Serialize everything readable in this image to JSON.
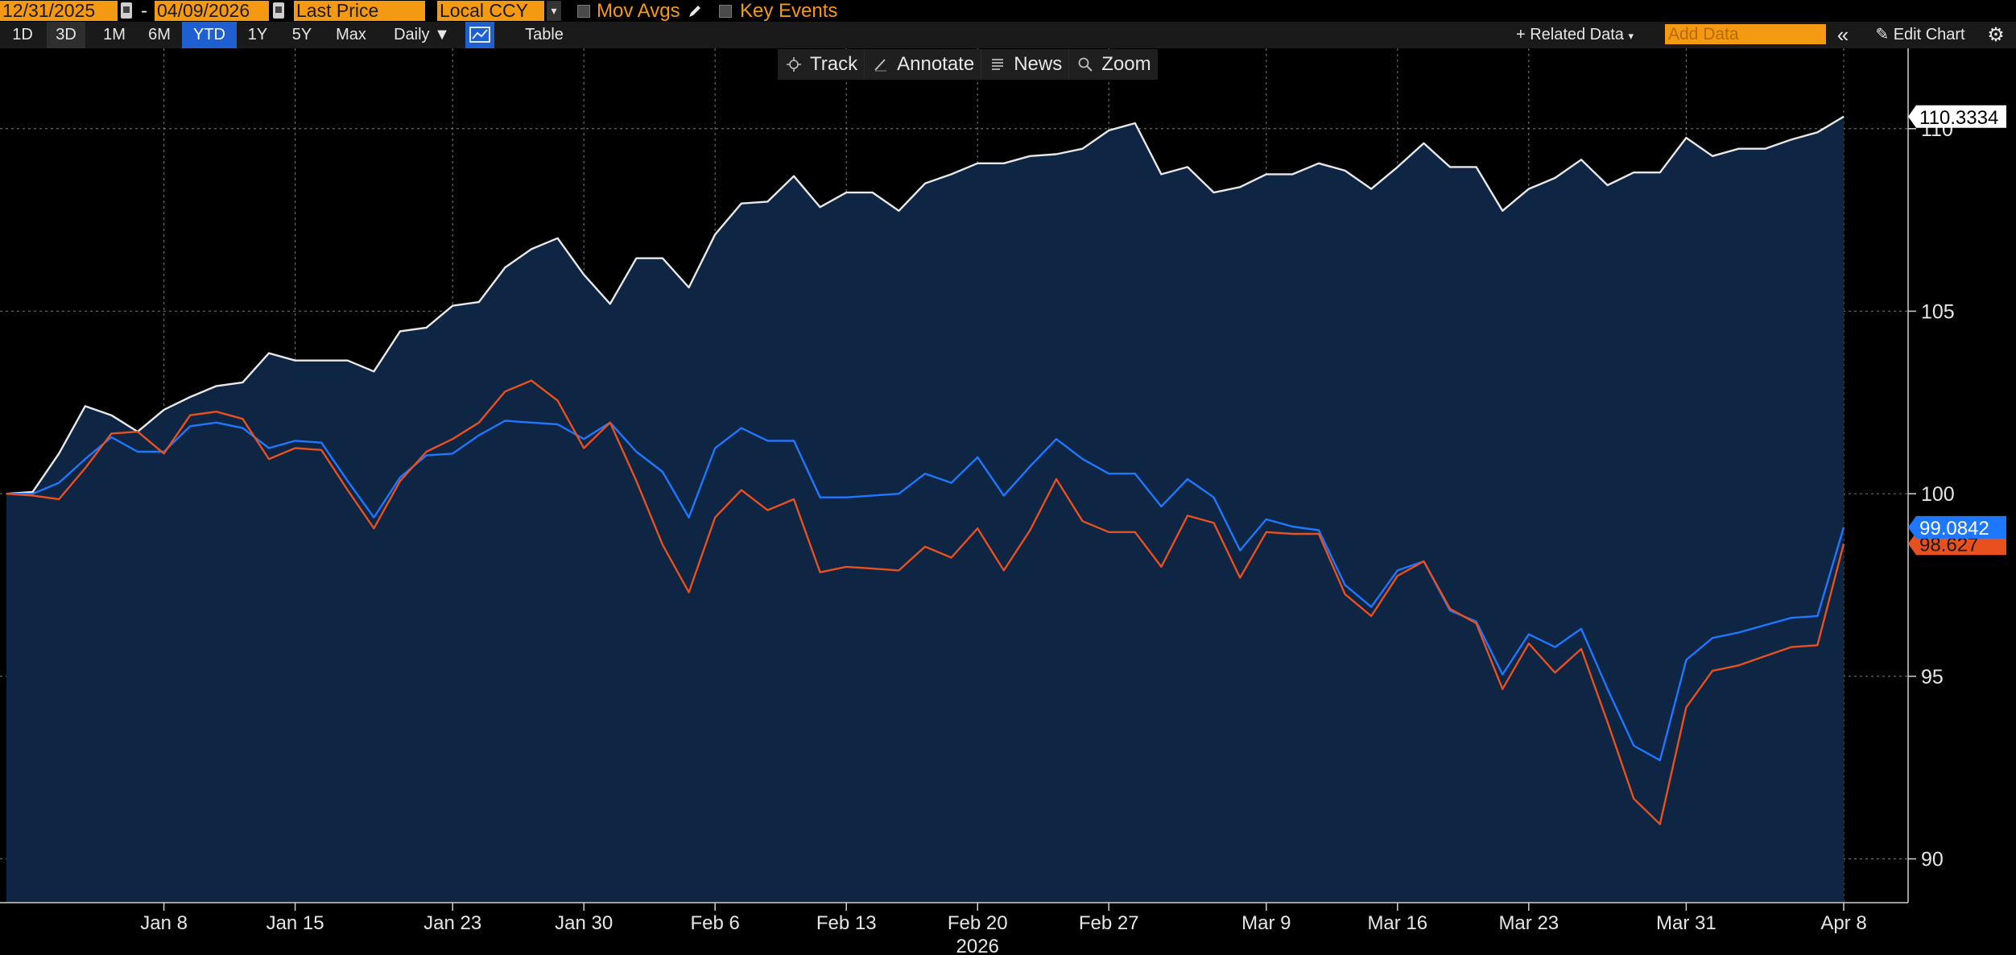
{
  "toolbar": {
    "start_date": "12/31/2025",
    "date_separator": "-",
    "end_date": "04/09/2026",
    "field": "Last Price",
    "currency": "Local CCY",
    "mov_avgs_label": "Mov Avgs",
    "key_events_label": "Key Events",
    "periods": [
      "1D",
      "3D",
      "1M",
      "6M",
      "YTD",
      "1Y",
      "5Y",
      "Max"
    ],
    "active_period": "YTD",
    "frequency": "Daily",
    "table_label": "Table",
    "related_data_label": "+ Related Data",
    "add_data_placeholder": "Add Data",
    "edit_chart_label": "Edit Chart"
  },
  "overlay": {
    "track_label": "Track",
    "annotate_label": "Annotate",
    "news_label": "News",
    "zoom_label": "Zoom"
  },
  "colors": {
    "background": "#000000",
    "area_fill": "#0f2544",
    "white_series": "#e8e8e8",
    "blue_series": "#1e78ff",
    "orange_series": "#e8501e",
    "accent_orange": "#f39a12",
    "active_blue": "#1f5fcf"
  },
  "chart_data": {
    "type": "line",
    "title": "",
    "xlabel": "2026",
    "ylabel": "",
    "ylim": [
      88.8,
      112.2
    ],
    "y_ticks": [
      90,
      95,
      100,
      105,
      110
    ],
    "x_tick_labels": [
      "Jan 8",
      "Jan 15",
      "Jan 23",
      "Jan 30",
      "Feb 6",
      "Feb 13",
      "Feb 20",
      "Feb 27",
      "Mar 9",
      "Mar 16",
      "Mar 23",
      "Mar 31",
      "Apr 8"
    ],
    "x_tick_index": [
      6,
      11,
      17,
      22,
      27,
      32,
      37,
      42,
      48,
      53,
      58,
      64,
      70
    ],
    "grid": true,
    "series": [
      {
        "color": "#e8e8e8",
        "filled": true,
        "last_value_label": "110.3334",
        "values": [
          100.0,
          100.05,
          101.1,
          102.4,
          102.15,
          101.7,
          102.3,
          102.65,
          102.95,
          103.05,
          103.85,
          103.65,
          103.65,
          103.65,
          103.35,
          104.45,
          104.55,
          105.15,
          105.25,
          106.2,
          106.7,
          107.0,
          106.0,
          105.2,
          106.45,
          106.45,
          105.65,
          107.1,
          107.95,
          108.0,
          108.7,
          107.85,
          108.25,
          108.25,
          107.75,
          108.5,
          108.75,
          109.05,
          109.05,
          109.25,
          109.3,
          109.45,
          109.95,
          110.15,
          108.75,
          108.95,
          108.25,
          108.4,
          108.75,
          108.75,
          109.05,
          108.85,
          108.35,
          108.95,
          109.6,
          108.95,
          108.95,
          107.75,
          108.35,
          108.65,
          109.15,
          108.45,
          108.8,
          108.8,
          109.75,
          109.25,
          109.45,
          109.45,
          109.7,
          109.9,
          110.33
        ]
      },
      {
        "color": "#1e78ff",
        "filled": false,
        "last_value_label": "99.0842",
        "values": [
          100.0,
          100.0,
          100.3,
          100.95,
          101.55,
          101.15,
          101.15,
          101.85,
          101.95,
          101.8,
          101.25,
          101.45,
          101.4,
          100.35,
          99.35,
          100.45,
          101.05,
          101.1,
          101.6,
          102.0,
          101.95,
          101.9,
          101.5,
          101.95,
          101.15,
          100.6,
          99.35,
          101.25,
          101.8,
          101.45,
          101.45,
          99.9,
          99.9,
          99.95,
          100.0,
          100.55,
          100.3,
          101.0,
          99.95,
          100.75,
          101.5,
          100.95,
          100.55,
          100.55,
          99.65,
          100.4,
          99.9,
          98.45,
          99.3,
          99.1,
          99.0,
          97.5,
          96.9,
          97.9,
          98.15,
          96.8,
          96.5,
          95.05,
          96.15,
          95.8,
          96.3,
          94.65,
          93.1,
          92.7,
          95.45,
          96.05,
          96.2,
          96.4,
          96.6,
          96.65,
          99.08
        ]
      },
      {
        "color": "#e8501e",
        "filled": false,
        "last_value_label": "98.627",
        "values": [
          100.0,
          99.95,
          99.85,
          100.7,
          101.65,
          101.7,
          101.1,
          102.15,
          102.25,
          102.05,
          100.95,
          101.25,
          101.2,
          100.1,
          99.05,
          100.35,
          101.15,
          101.5,
          101.95,
          102.8,
          103.1,
          102.55,
          101.25,
          101.95,
          100.35,
          98.6,
          97.3,
          99.35,
          100.1,
          99.55,
          99.85,
          97.85,
          98.0,
          97.95,
          97.9,
          98.55,
          98.25,
          99.05,
          97.9,
          99.0,
          100.4,
          99.25,
          98.95,
          98.95,
          98.0,
          99.4,
          99.2,
          97.7,
          98.95,
          98.9,
          98.9,
          97.25,
          96.65,
          97.75,
          98.15,
          96.85,
          96.45,
          94.65,
          95.9,
          95.1,
          95.75,
          93.75,
          91.65,
          90.95,
          94.15,
          95.15,
          95.3,
          95.55,
          95.8,
          95.85,
          98.63
        ]
      }
    ]
  }
}
